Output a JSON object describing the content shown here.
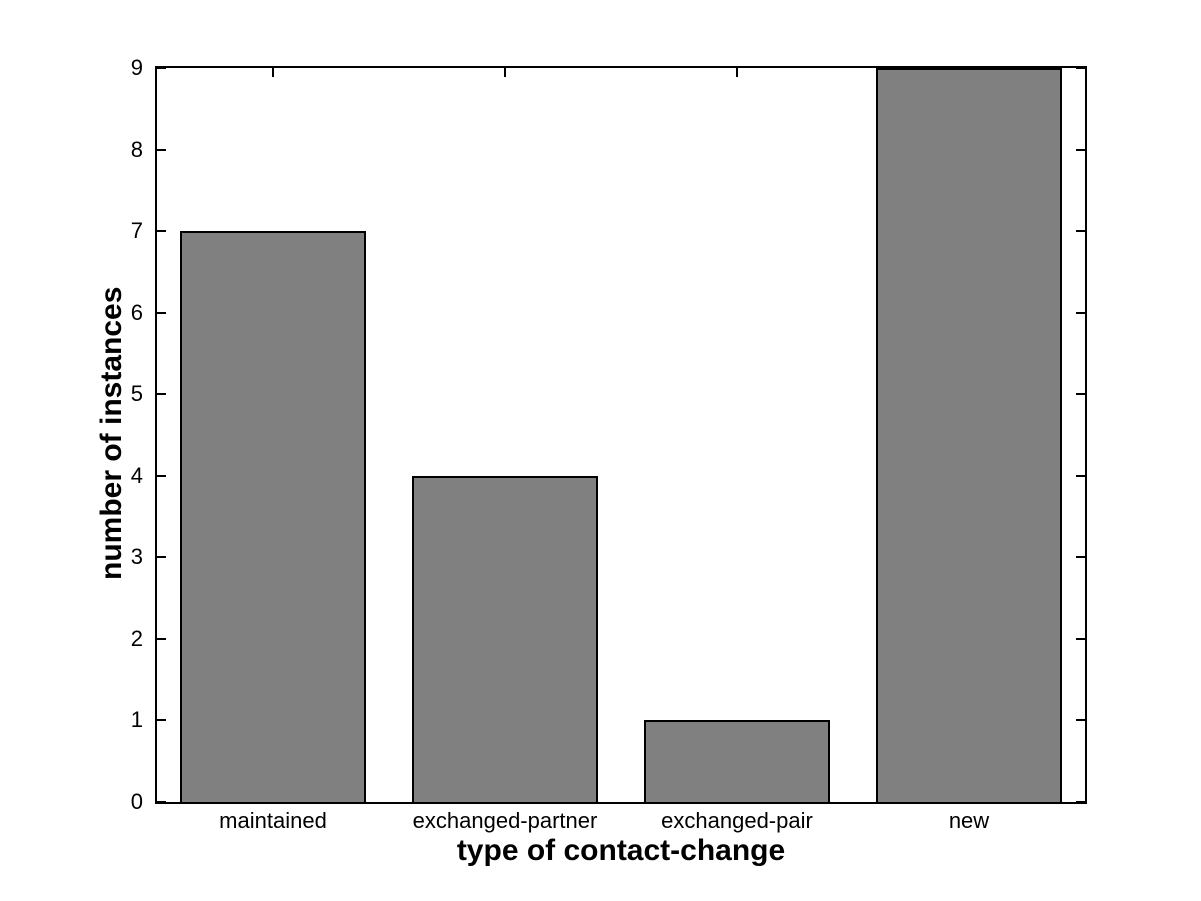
{
  "chart_data": {
    "type": "bar",
    "title": "",
    "categories": [
      "maintained",
      "exchanged-partner",
      "exchanged-pair",
      "new"
    ],
    "values": [
      7,
      4,
      1,
      9
    ],
    "xlabel": "type of contact-change",
    "ylabel": "number of instances",
    "ylim": [
      0,
      9
    ],
    "yticks": [
      0,
      1,
      2,
      3,
      4,
      5,
      6,
      7,
      8,
      9
    ],
    "bar_relative_width": 0.8,
    "bar_color": "#808080",
    "bar_edge_color": "#000000",
    "axis_color": "#000000",
    "background_color": "#ffffff",
    "grid": false,
    "legend": null,
    "tick_direction": "in",
    "box": true
  }
}
